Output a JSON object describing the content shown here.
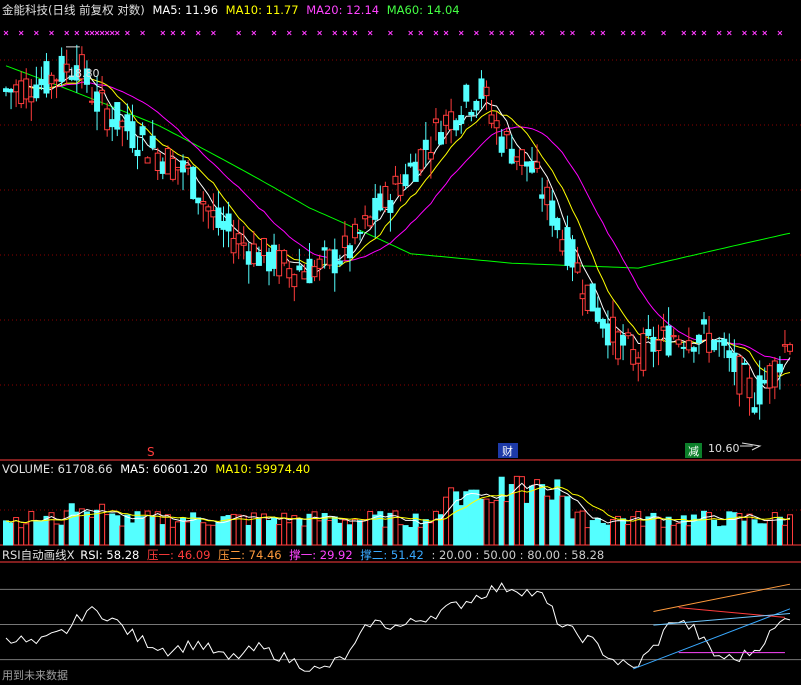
{
  "main_legend": {
    "title": "金能科技(日线 前复权 对数)",
    "ma5": "MA5: 11.96",
    "ma10": "MA10: 11.77",
    "ma20": "MA20: 12.14",
    "ma60": "MA60: 14.04"
  },
  "volume_legend": {
    "title": "VOLUME: 61708.66",
    "ma5": "MA5: 60601.20",
    "ma10": "MA10: 59974.40"
  },
  "rsi_legend": {
    "title": "RSI自动画线X",
    "rsi": "RSI: 58.28",
    "press1": "压一: 46.09",
    "press2": "压二: 74.46",
    "support1": "撑一: 29.92",
    "support2": "撑二: 51.42",
    "levels": ": 20.00 : 50.00 : 80.00 : 58.28"
  },
  "annotations": {
    "high": "18.80",
    "low": "10.60",
    "event_s": "S",
    "event_cai": "财",
    "event_jian": "减"
  },
  "watermark": "用到未来数据",
  "colors": {
    "up": "#ff3c3c",
    "down": "#54ffff",
    "ma5": "#ffffff",
    "ma10": "#ffff00",
    "ma20": "#ff00ff",
    "ma60": "#00ff00",
    "grid": "#8b0000",
    "axis": "#ff3c3c"
  },
  "chart_data": [
    {
      "type": "candlestick",
      "title": "金能科技(日线 前复权 对数)",
      "scale": "log",
      "price_range": [
        10.6,
        18.8
      ],
      "annotated_high": 18.8,
      "annotated_low": 10.6,
      "indicators": {
        "MA5": 11.96,
        "MA10": 11.77,
        "MA20": 12.14,
        "MA60": 14.04
      },
      "close_path_keyframes": [
        [
          0,
          17.5
        ],
        [
          8,
          17.8
        ],
        [
          14,
          18.3
        ],
        [
          18,
          17.2
        ],
        [
          24,
          16.5
        ],
        [
          30,
          15.9
        ],
        [
          36,
          15.4
        ],
        [
          42,
          14.2
        ],
        [
          50,
          13.6
        ],
        [
          56,
          13.3
        ],
        [
          62,
          13.3
        ],
        [
          68,
          13.7
        ],
        [
          74,
          14.6
        ],
        [
          80,
          15.5
        ],
        [
          86,
          16.6
        ],
        [
          90,
          17.1
        ],
        [
          94,
          17.5
        ],
        [
          98,
          16.3
        ],
        [
          104,
          15.5
        ],
        [
          110,
          14.0
        ],
        [
          116,
          12.6
        ],
        [
          120,
          12.0
        ],
        [
          124,
          11.6
        ],
        [
          128,
          11.8
        ],
        [
          132,
          12.0
        ],
        [
          136,
          12.0
        ],
        [
          140,
          11.9
        ],
        [
          144,
          11.4
        ],
        [
          148,
          10.9
        ],
        [
          152,
          11.4
        ],
        [
          155,
          11.96
        ]
      ]
    },
    {
      "type": "bar",
      "title": "VOLUME",
      "last_value": 61708.66,
      "indicators": {
        "MA5": 60601.2,
        "MA10": 59974.4
      }
    },
    {
      "type": "line",
      "title": "RSI自动画线X",
      "ylim": [
        0,
        100
      ],
      "reference_levels": [
        20,
        50,
        80
      ],
      "last_value": 58.28,
      "press1": 46.09,
      "press2": 74.46,
      "support1": 29.92,
      "support2": 51.42,
      "rsi_keyframes": [
        [
          0,
          40
        ],
        [
          6,
          33
        ],
        [
          12,
          45
        ],
        [
          16,
          62
        ],
        [
          20,
          58
        ],
        [
          26,
          38
        ],
        [
          32,
          28
        ],
        [
          38,
          34
        ],
        [
          44,
          20
        ],
        [
          50,
          30
        ],
        [
          56,
          20
        ],
        [
          62,
          10
        ],
        [
          68,
          25
        ],
        [
          72,
          52
        ],
        [
          78,
          48
        ],
        [
          84,
          58
        ],
        [
          90,
          68
        ],
        [
          96,
          80
        ],
        [
          100,
          82
        ],
        [
          106,
          74
        ],
        [
          110,
          48
        ],
        [
          116,
          35
        ],
        [
          120,
          20
        ],
        [
          124,
          12
        ],
        [
          128,
          30
        ],
        [
          132,
          55
        ],
        [
          136,
          46
        ],
        [
          140,
          24
        ],
        [
          144,
          20
        ],
        [
          148,
          28
        ],
        [
          152,
          46
        ],
        [
          155,
          58.28
        ]
      ]
    }
  ]
}
